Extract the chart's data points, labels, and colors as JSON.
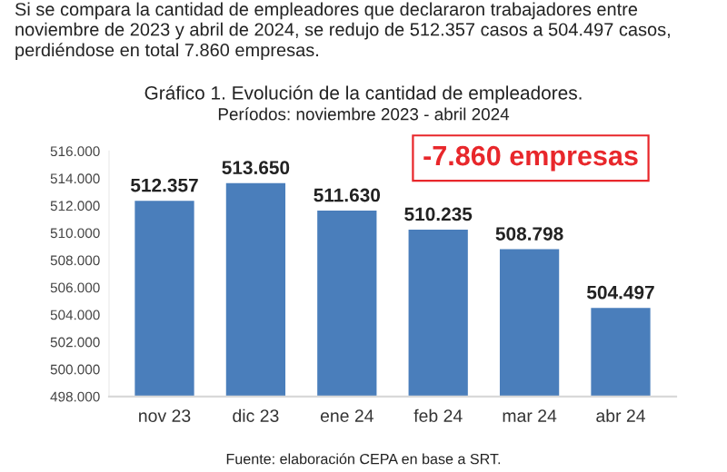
{
  "chart_data": {
    "type": "bar",
    "title": "Gráfico 1. Evolución de la cantidad de empleadores.",
    "subtitle": "Períodos: noviembre 2023 - abril 2024",
    "categories": [
      "nov 23",
      "dic 23",
      "ene 24",
      "feb 24",
      "mar 24",
      "abr 24"
    ],
    "values": [
      512357,
      513650,
      511630,
      510235,
      508798,
      504497
    ],
    "value_labels": [
      "512.357",
      "513.650",
      "511.630",
      "510.235",
      "508.798",
      "504.497"
    ],
    "color": "#4a7ebb",
    "ylim": [
      498000,
      516000
    ],
    "yticks": [
      {
        "value": 498000,
        "label": "498.000"
      },
      {
        "value": 500000,
        "label": "500.000"
      },
      {
        "value": 502000,
        "label": "502.000"
      },
      {
        "value": 504000,
        "label": "504.000"
      },
      {
        "value": 506000,
        "label": "506.000"
      },
      {
        "value": 508000,
        "label": "508.000"
      },
      {
        "value": 510000,
        "label": "510.000"
      },
      {
        "value": 512000,
        "label": "512.000"
      },
      {
        "value": 514000,
        "label": "514.000"
      },
      {
        "value": 516000,
        "label": "516.000"
      }
    ],
    "grid": false,
    "annotations": [
      "Si se compara la cantidad de empleadores que declararon trabajadores entre noviembre de 2023 y abril de 2024, se redujo de 512.357 casos a 504.497 casos, perdiéndose en total 7.860 empresas.",
      "-7.860 empresas",
      "Fuente: elaboración CEPA en base a SRT."
    ]
  }
}
